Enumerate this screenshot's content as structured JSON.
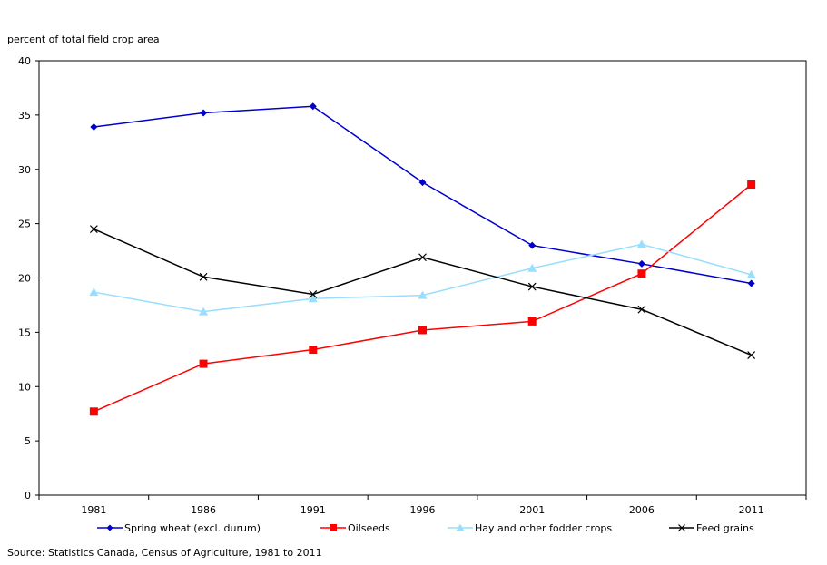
{
  "chart_data": {
    "type": "line",
    "ylabel": "percent of total field crop area",
    "xlabel": "",
    "categories": [
      "1981",
      "1986",
      "1991",
      "1996",
      "2001",
      "2006",
      "2011"
    ],
    "ylim": [
      0,
      40
    ],
    "yticks": [
      "0",
      "5",
      "10",
      "15",
      "20",
      "25",
      "30",
      "35",
      "40"
    ],
    "grid": false,
    "legend_position": "bottom",
    "series": [
      {
        "name": "Spring wheat (excl. durum)",
        "color": "#0000cc",
        "marker": "diamond",
        "values": [
          33.9,
          35.2,
          35.8,
          28.8,
          23.0,
          21.3,
          19.5
        ]
      },
      {
        "name": "Oilseeds",
        "color": "#ff0000",
        "marker": "square",
        "values": [
          7.7,
          12.1,
          13.4,
          15.2,
          16.0,
          20.4,
          28.6
        ]
      },
      {
        "name": "Hay and other fodder crops",
        "color": "#99ddff",
        "marker": "triangle",
        "values": [
          18.7,
          16.9,
          18.1,
          18.4,
          20.9,
          23.1,
          20.3
        ]
      },
      {
        "name": "Feed grains",
        "color": "#000000",
        "marker": "x",
        "values": [
          24.5,
          20.1,
          18.5,
          21.9,
          19.2,
          17.1,
          12.9
        ]
      }
    ]
  },
  "source": "Source: Statistics Canada, Census of Agriculture, 1981 to 2011"
}
